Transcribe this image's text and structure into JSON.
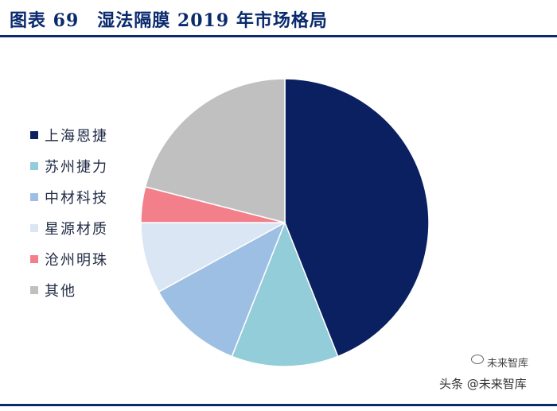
{
  "header": {
    "title": "图表 69　湿法隔膜 2019 年市场格局"
  },
  "chart_data": {
    "type": "pie",
    "title": "湿法隔膜 2019 年市场格局",
    "slices": [
      {
        "label": "上海恩捷",
        "value": 44,
        "color": "#0a2060"
      },
      {
        "label": "苏州捷力",
        "value": 12,
        "color": "#92cdd9"
      },
      {
        "label": "中材科技",
        "value": 11,
        "color": "#9dbfe3"
      },
      {
        "label": "星源材质",
        "value": 8,
        "color": "#dbe6f4"
      },
      {
        "label": "沧州明珠",
        "value": 4,
        "color": "#f27f8a"
      },
      {
        "label": "其他",
        "value": 21,
        "color": "#c0c0c0"
      }
    ],
    "start": "12 o'clock",
    "direction": "clockwise",
    "legend_position": "left"
  },
  "watermark": {
    "text": "头条 @未来智库",
    "brand": "未来智库"
  }
}
